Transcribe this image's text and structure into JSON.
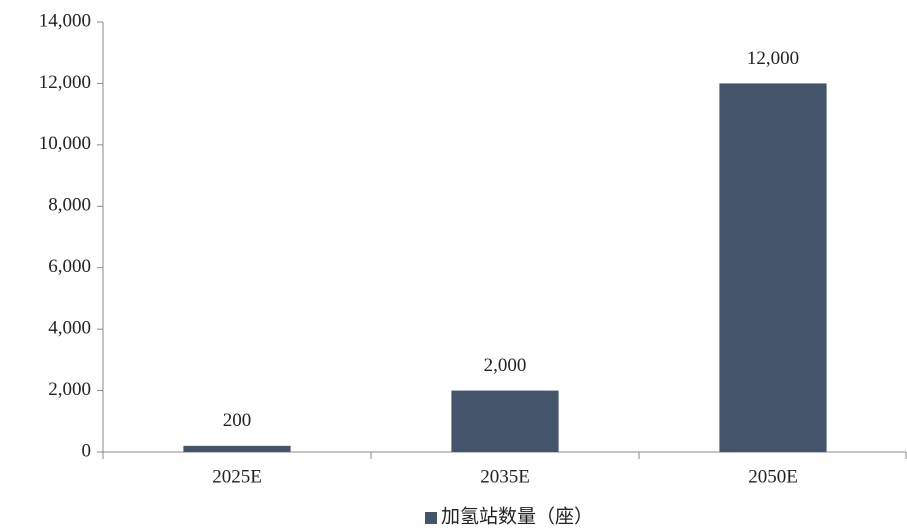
{
  "chart_data": {
    "type": "bar",
    "categories": [
      "2025E",
      "2035E",
      "2050E"
    ],
    "series": [
      {
        "name": "加氢站数量（座）",
        "color": "#44546a",
        "values": [
          200,
          2000,
          12000
        ],
        "value_labels": [
          "200",
          "2,000",
          "12,000"
        ]
      }
    ],
    "ylim": [
      0,
      14000
    ],
    "yticks": [
      0,
      {
        "value": 2000,
        "label": "2,000"
      },
      {
        "value": 4000,
        "label": "4,000"
      },
      {
        "value": 6000,
        "label": "6,000"
      },
      {
        "value": 8000,
        "label": "8,000"
      },
      {
        "value": 10000,
        "label": "10,000"
      },
      {
        "value": 12000,
        "label": "12,000"
      },
      {
        "value": 14000,
        "label": "14,000"
      }
    ],
    "grid": false,
    "legend": "bottom"
  }
}
